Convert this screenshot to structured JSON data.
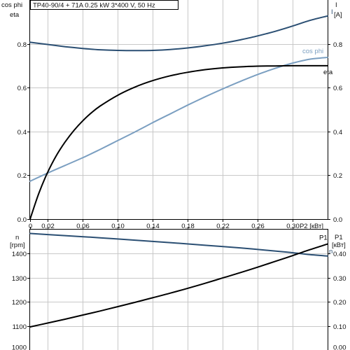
{
  "title": "TP40-90/4 + 71A   0.25 kW   3*400 V, 50 Hz",
  "colors": {
    "dark_blue": "#2b4f73",
    "black": "#000000",
    "light_blue": "#7b9fc1",
    "grid": "#c8c8c8"
  },
  "chart_data": [
    {
      "type": "line",
      "panel": "top",
      "grid": true,
      "x_label": "P2 [кВт]",
      "x_ticks": [
        "0",
        "0,02",
        "0,06",
        "0,10",
        "0,14",
        "0,18",
        "0,22",
        "0,26",
        "0,30"
      ],
      "x_tick_values": [
        0,
        0.02,
        0.06,
        0.1,
        0.14,
        0.18,
        0.22,
        0.26,
        0.3
      ],
      "xlim": [
        0,
        0.34
      ],
      "y_left_label_1": "cos phi",
      "y_left_label_2": "eta",
      "y_left_ticks": [
        "0.8",
        "0.6",
        "0.4",
        "0.2",
        "0.0"
      ],
      "y_left_tick_values": [
        0.8,
        0.6,
        0.4,
        0.2,
        0.0
      ],
      "y_left_lim": [
        0,
        1.0
      ],
      "y_right_label_1": "I",
      "y_right_label_2": "[A]",
      "y_right_ticks": [
        "0.8",
        "0.6",
        "0.4",
        "0.2",
        "0.0"
      ],
      "y_right_tick_values": [
        0.8,
        0.6,
        0.4,
        0.2,
        0.0
      ],
      "y_right_lim": [
        0,
        1.0
      ],
      "series": [
        {
          "name": "I",
          "color": "#2b4f73",
          "x": [
            0,
            0.02,
            0.04,
            0.06,
            0.08,
            0.1,
            0.12,
            0.14,
            0.16,
            0.18,
            0.2,
            0.22,
            0.24,
            0.26,
            0.28,
            0.3,
            0.32,
            0.34
          ],
          "y": [
            0.807,
            0.797,
            0.787,
            0.779,
            0.773,
            0.77,
            0.769,
            0.77,
            0.774,
            0.781,
            0.791,
            0.803,
            0.818,
            0.836,
            0.857,
            0.881,
            0.907,
            0.927
          ]
        },
        {
          "name": "cos phi",
          "color": "#7b9fc1",
          "x": [
            0,
            0.02,
            0.04,
            0.06,
            0.08,
            0.1,
            0.12,
            0.14,
            0.16,
            0.18,
            0.2,
            0.22,
            0.24,
            0.26,
            0.28,
            0.3,
            0.32,
            0.34
          ],
          "y": [
            0.173,
            0.21,
            0.245,
            0.28,
            0.318,
            0.358,
            0.398,
            0.44,
            0.48,
            0.52,
            0.558,
            0.594,
            0.628,
            0.66,
            0.688,
            0.712,
            0.73,
            0.738
          ]
        },
        {
          "name": "eta",
          "color": "#000000",
          "x": [
            0,
            0.01,
            0.02,
            0.03,
            0.04,
            0.05,
            0.06,
            0.07,
            0.08,
            0.1,
            0.12,
            0.14,
            0.16,
            0.18,
            0.2,
            0.22,
            0.24,
            0.26,
            0.28,
            0.3,
            0.32,
            0.34
          ],
          "y": [
            0.0,
            0.118,
            0.213,
            0.29,
            0.352,
            0.404,
            0.448,
            0.485,
            0.516,
            0.565,
            0.603,
            0.632,
            0.654,
            0.67,
            0.682,
            0.69,
            0.695,
            0.698,
            0.699,
            0.7,
            0.7,
            0.7
          ]
        }
      ]
    },
    {
      "type": "line",
      "panel": "bottom",
      "grid": true,
      "xlim": [
        0,
        0.34
      ],
      "y_left_label_1": "n",
      "y_left_label_2": "[rpm]",
      "y_left_ticks": [
        "1400",
        "1300",
        "1200",
        "1100",
        "1000"
      ],
      "y_left_tick_values": [
        1400,
        1300,
        1200,
        1100,
        1000
      ],
      "y_left_lim": [
        1000,
        1500
      ],
      "y_right_label_1": "P1",
      "y_right_label_2": "[кВт]",
      "y_right_ticks": [
        "0.40",
        "0.30",
        "0.20",
        "0.10",
        "0.00"
      ],
      "y_right_tick_values": [
        0.4,
        0.3,
        0.2,
        0.1,
        0.0
      ],
      "y_right_lim": [
        0,
        0.5
      ],
      "series": [
        {
          "name": "n",
          "axis": "left",
          "color": "#2b4f73",
          "x": [
            0,
            0.04,
            0.08,
            0.12,
            0.16,
            0.2,
            0.24,
            0.28,
            0.3,
            0.32,
            0.34
          ],
          "y": [
            1484,
            1475,
            1466,
            1456,
            1446,
            1435,
            1424,
            1411,
            1404,
            1396,
            1390
          ]
        },
        {
          "name": "P1",
          "axis": "right",
          "color": "#000000",
          "x": [
            0,
            0.02,
            0.04,
            0.06,
            0.08,
            0.1,
            0.12,
            0.14,
            0.16,
            0.18,
            0.2,
            0.22,
            0.24,
            0.26,
            0.28,
            0.3,
            0.32,
            0.34
          ],
          "y": [
            0.096,
            0.112,
            0.128,
            0.145,
            0.162,
            0.18,
            0.198,
            0.217,
            0.236,
            0.256,
            0.277,
            0.299,
            0.321,
            0.344,
            0.368,
            0.392,
            0.417,
            0.44
          ]
        }
      ]
    }
  ]
}
